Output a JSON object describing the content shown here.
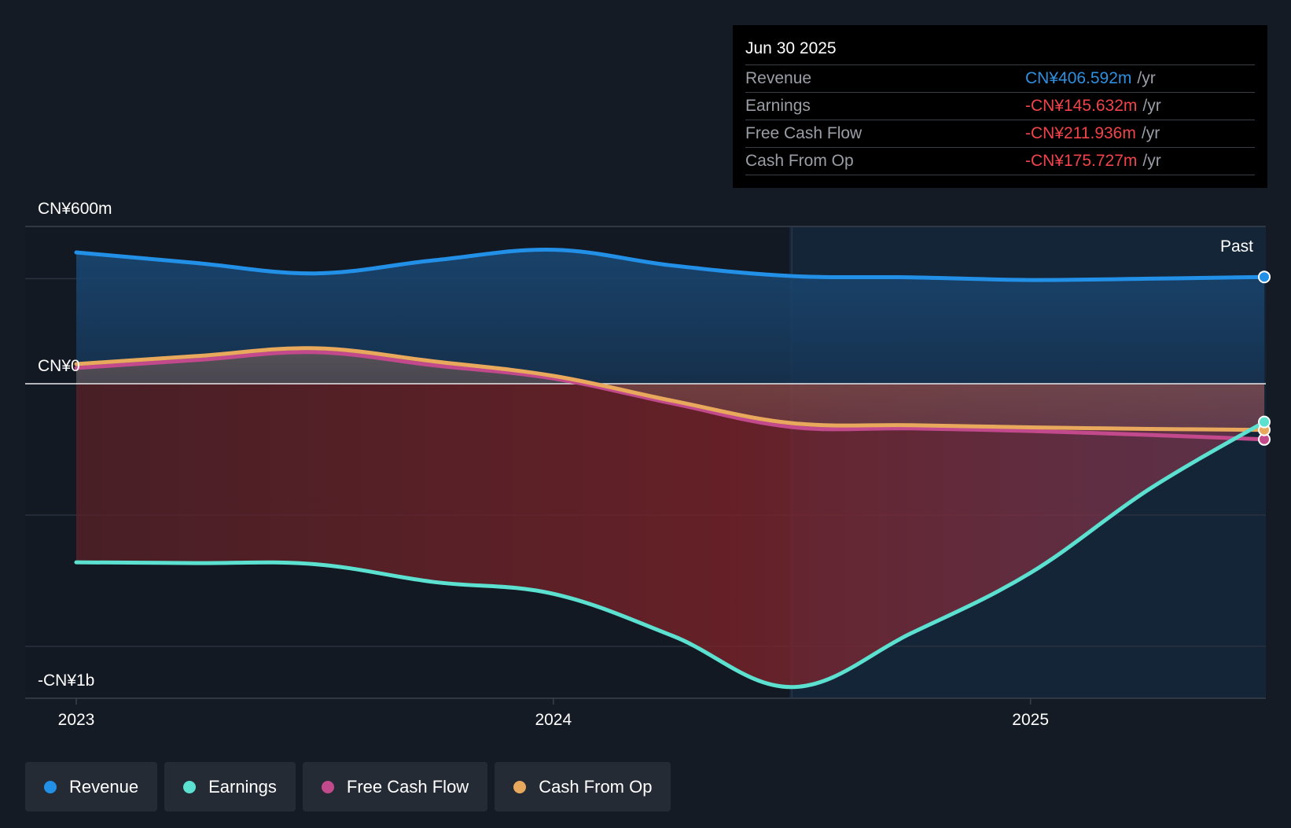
{
  "chart_data": {
    "type": "area",
    "title": "",
    "y_unit_labels": {
      "top": "CN¥600m",
      "zero": "CN¥0",
      "bottom": "-CN¥1b"
    },
    "ylim": [
      -1200,
      600
    ],
    "x_ticks": [
      {
        "label": "2023",
        "x": 2023.0
      },
      {
        "label": "2024",
        "x": 2024.0
      },
      {
        "label": "2025",
        "x": 2025.0
      }
    ],
    "xlim": [
      2022.9,
      2025.49
    ],
    "past_label": "Past",
    "highlight_start": 2024.5,
    "series": [
      {
        "name": "Revenue",
        "color": "#2390e8",
        "x": [
          2023.0,
          2023.25,
          2023.5,
          2023.75,
          2024.0,
          2024.25,
          2024.5,
          2024.75,
          2025.0,
          2025.25,
          2025.49
        ],
        "values": [
          500,
          460,
          420,
          470,
          510,
          450,
          410,
          405,
          395,
          400,
          406.592
        ]
      },
      {
        "name": "Earnings",
        "color": "#5ce0d0",
        "x": [
          2023.0,
          2023.25,
          2023.5,
          2023.75,
          2024.0,
          2024.25,
          2024.5,
          2024.75,
          2025.0,
          2025.25,
          2025.49
        ],
        "values": [
          -680,
          -683,
          -687,
          -755,
          -800,
          -960,
          -1155,
          -950,
          -720,
          -400,
          -145.632
        ]
      },
      {
        "name": "Free Cash Flow",
        "color": "#c24a8c",
        "x": [
          2023.0,
          2023.25,
          2023.5,
          2023.75,
          2024.0,
          2024.25,
          2024.5,
          2024.75,
          2025.0,
          2025.25,
          2025.49
        ],
        "values": [
          60,
          90,
          120,
          70,
          20,
          -75,
          -165,
          -170,
          -180,
          -195,
          -211.936
        ]
      },
      {
        "name": "Cash From Op",
        "color": "#e8a95c",
        "x": [
          2023.0,
          2023.25,
          2023.5,
          2023.75,
          2024.0,
          2024.25,
          2024.5,
          2024.75,
          2025.0,
          2025.25,
          2025.49
        ],
        "values": [
          75,
          105,
          135,
          85,
          30,
          -65,
          -150,
          -158,
          -166,
          -172,
          -175.727
        ]
      }
    ]
  },
  "tooltip": {
    "date": "Jun 30 2025",
    "rows": [
      {
        "label": "Revenue",
        "value": "CN¥406.592m",
        "unit": "/yr",
        "color": "#2e8fe0"
      },
      {
        "label": "Earnings",
        "value": "-CN¥145.632m",
        "unit": "/yr",
        "color": "#f0444a"
      },
      {
        "label": "Free Cash Flow",
        "value": "-CN¥211.936m",
        "unit": "/yr",
        "color": "#f0444a"
      },
      {
        "label": "Cash From Op",
        "value": "-CN¥175.727m",
        "unit": "/yr",
        "color": "#f0444a"
      }
    ]
  },
  "legend": [
    {
      "label": "Revenue",
      "color": "#2390e8"
    },
    {
      "label": "Earnings",
      "color": "#5ce0d0"
    },
    {
      "label": "Free Cash Flow",
      "color": "#c24a8c"
    },
    {
      "label": "Cash From Op",
      "color": "#e8a95c"
    }
  ]
}
